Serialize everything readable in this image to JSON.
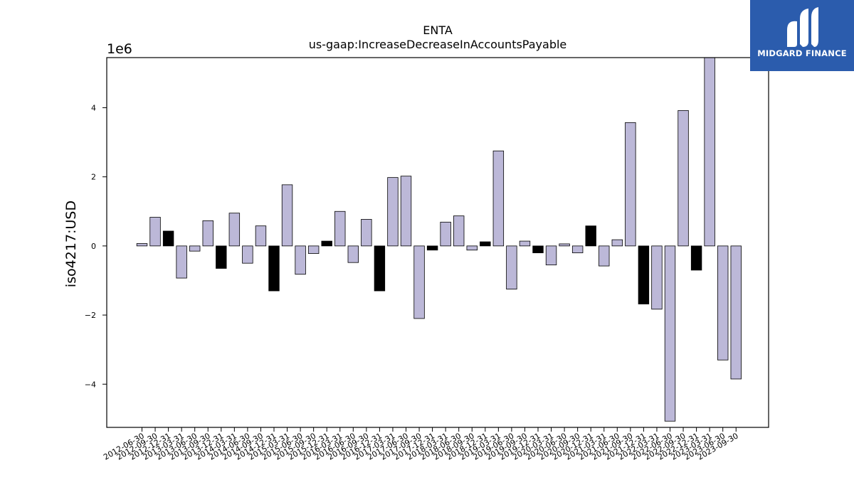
{
  "chart_data": {
    "type": "bar",
    "title": "ENTA",
    "subtitle": "us-gaap:IncreaseDecreaseInAccountsPayable",
    "xlabel": "",
    "ylabel": "iso4217:USD",
    "y_scale_label": "1e6",
    "ylim": [
      -5.25,
      5.45
    ],
    "yticks": [
      -4,
      -2,
      0,
      2,
      4
    ],
    "ytick_labels": [
      "−4",
      "−2",
      "0",
      "2",
      "4"
    ],
    "grid": false,
    "categories": [
      "2012-06-30",
      "2012-09-30",
      "2012-12-31",
      "2013-03-31",
      "2013-06-30",
      "2013-09-30",
      "2013-12-31",
      "2014-03-31",
      "2014-06-30",
      "2014-09-30",
      "2014-12-31",
      "2015-03-31",
      "2015-06-30",
      "2015-09-30",
      "2015-12-31",
      "2016-03-31",
      "2016-06-30",
      "2016-09-30",
      "2016-12-31",
      "2017-03-31",
      "2017-06-30",
      "2017-09-30",
      "2017-12-31",
      "2018-03-31",
      "2018-06-30",
      "2018-09-30",
      "2018-12-31",
      "2019-03-31",
      "2019-06-30",
      "2019-09-30",
      "2019-12-31",
      "2020-03-31",
      "2020-06-30",
      "2020-09-30",
      "2020-12-31",
      "2021-03-31",
      "2021-06-30",
      "2021-09-30",
      "2021-12-31",
      "2022-03-31",
      "2022-06-30",
      "2022-09-30",
      "2022-12-31",
      "2023-03-31",
      "2023-06-30",
      "2023-09-30"
    ],
    "values": [
      0.07,
      0.83,
      0.43,
      -0.93,
      -0.15,
      0.73,
      -0.65,
      0.95,
      -0.5,
      0.58,
      -1.3,
      1.77,
      -0.82,
      -0.22,
      0.14,
      1.0,
      -0.48,
      0.77,
      -1.3,
      1.98,
      2.02,
      -2.1,
      -0.12,
      0.69,
      0.87,
      -0.12,
      0.12,
      2.75,
      -1.25,
      0.14,
      -0.2,
      -0.55,
      0.06,
      -0.2,
      0.58,
      -0.58,
      0.18,
      3.57,
      -1.68,
      -1.83,
      -5.07,
      3.92,
      -0.7,
      5.45,
      -3.3,
      -3.85
    ],
    "bar_kind": [
      "regular",
      "regular",
      "highlight",
      "regular",
      "regular",
      "regular",
      "highlight",
      "regular",
      "regular",
      "regular",
      "highlight",
      "regular",
      "regular",
      "regular",
      "highlight",
      "regular",
      "regular",
      "regular",
      "highlight",
      "regular",
      "regular",
      "regular",
      "highlight",
      "regular",
      "regular",
      "regular",
      "highlight",
      "regular",
      "regular",
      "regular",
      "highlight",
      "regular",
      "regular",
      "regular",
      "highlight",
      "regular",
      "regular",
      "regular",
      "highlight",
      "regular",
      "regular",
      "regular",
      "highlight",
      "regular",
      "regular",
      "regular"
    ],
    "colors": {
      "regular": "#bcb8d8",
      "highlight": "#000000",
      "edge": "#000000"
    }
  },
  "logo": {
    "text": "MIDGARD FINANCE",
    "background": "#2b5cad"
  }
}
